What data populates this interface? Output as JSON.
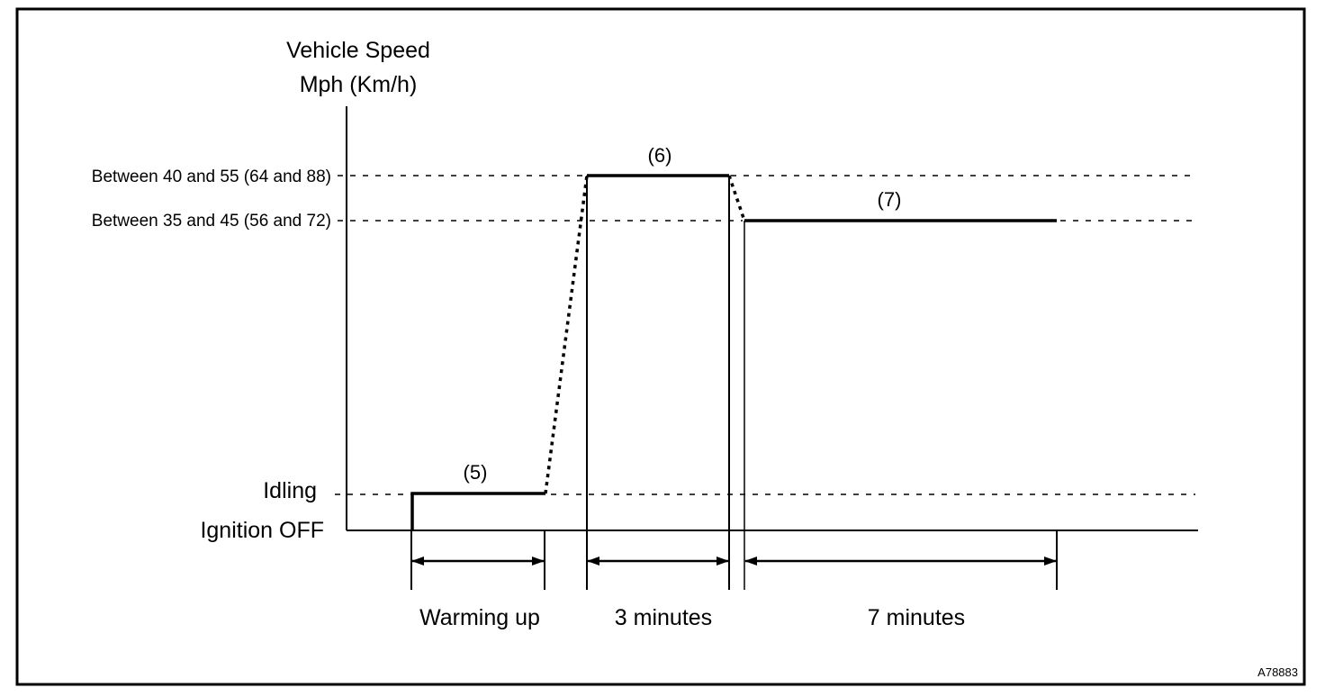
{
  "figure_id": "A78883",
  "y_axis": {
    "title_line1": "Vehicle Speed",
    "title_line2": "Mph (Km/h)"
  },
  "levels": {
    "high": "Between 40 and 55 (64 and 88)",
    "mid": "Between 35 and 45 (56 and 72)",
    "idling": "Idling",
    "ignition_off": "Ignition OFF"
  },
  "steps": [
    {
      "label": "(5)"
    },
    {
      "label": "(6)"
    },
    {
      "label": "(7)"
    }
  ],
  "durations": [
    {
      "label": "Warming up"
    },
    {
      "label": "3 minutes"
    },
    {
      "label": "7 minutes"
    }
  ],
  "colors": {
    "line": "#000000",
    "background": "#ffffff"
  }
}
